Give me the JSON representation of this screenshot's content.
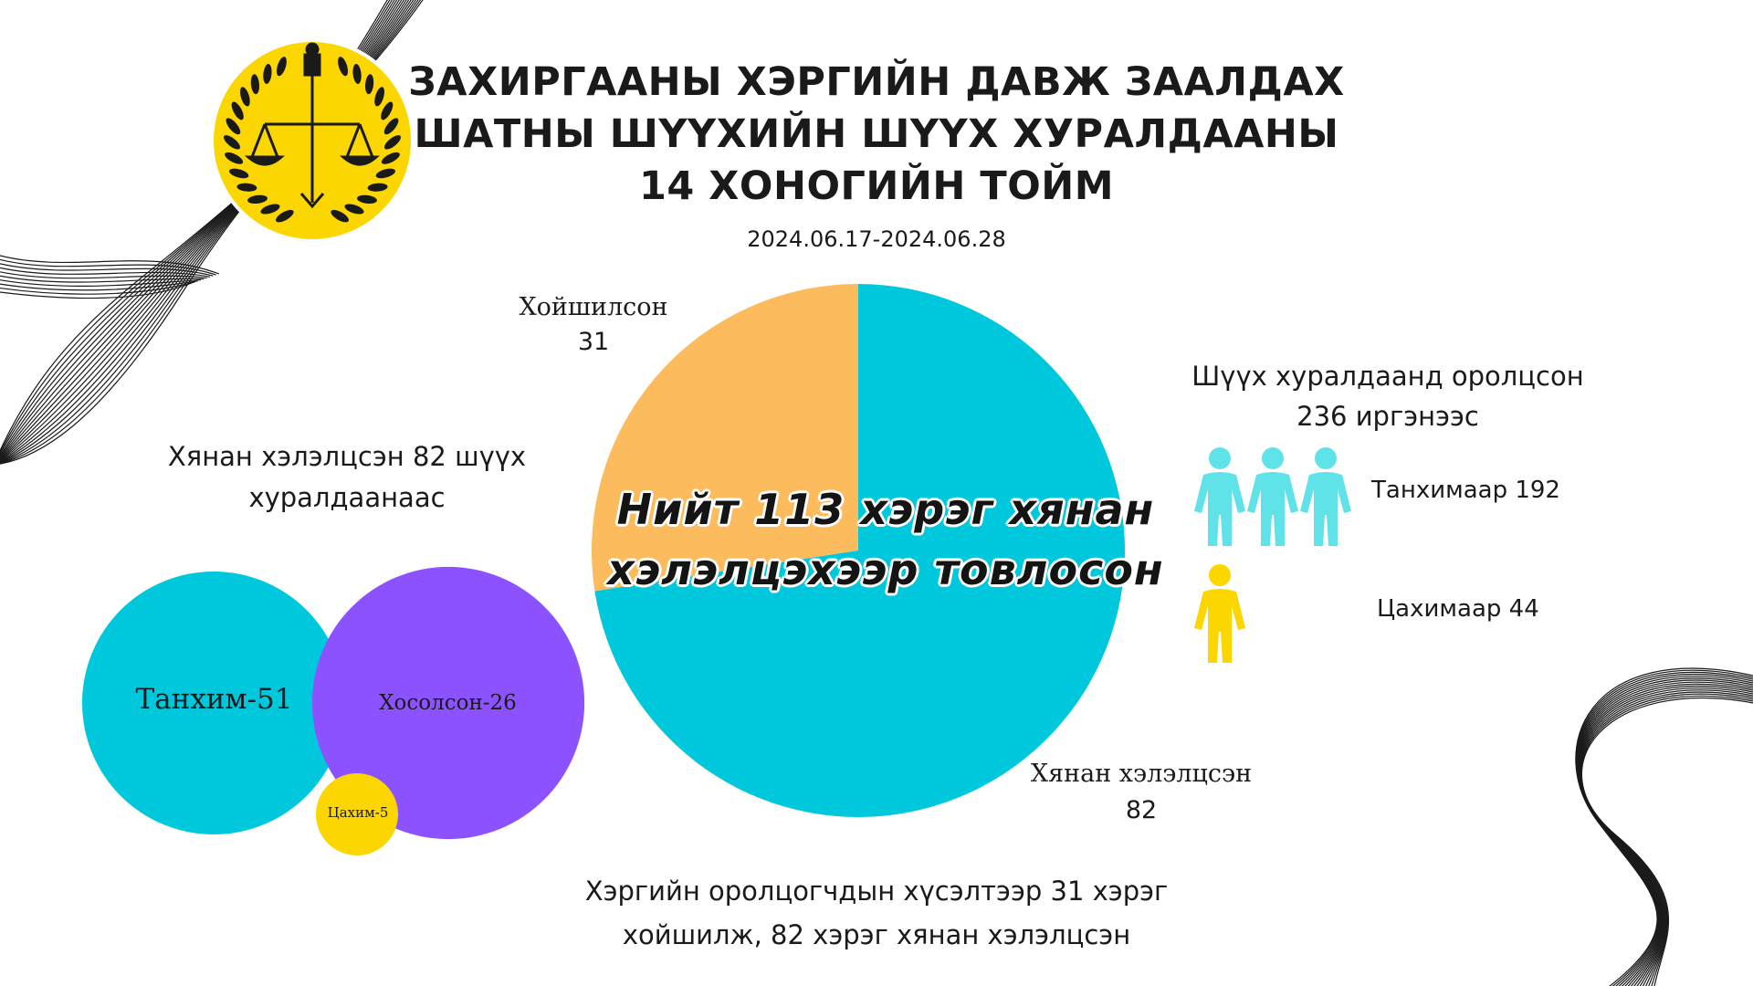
{
  "header": {
    "title_lines": [
      "ЗАХИРГААНЫ ХЭРГИЙН ДАВЖ ЗААЛДАХ",
      "ШАТНЫ ШҮҮХИЙН ШҮҮХ ХУРАЛДААНЫ",
      "14 ХОНОГИЙН ТОЙМ"
    ],
    "date_range": "2024.06.17-2024.06.28"
  },
  "colors": {
    "cyan": "#00c8dc",
    "orange": "#fcbb5c",
    "purple": "#8c52ff",
    "yellow": "#fcd600",
    "people_cyan": "#5fe3e8",
    "emblem_yellow": "#fcd600"
  },
  "chart_data": [
    {
      "type": "pie",
      "title": "",
      "center_label_lines": [
        "Нийт 113 хэрэг хянан",
        "хэлэлцэхээр товлосон"
      ],
      "slices": [
        {
          "name": "Хойшилсон",
          "value": 31,
          "value_label": "31",
          "color": "#fcbb5c"
        },
        {
          "name": "Хянан хэлэлцсэн",
          "value": 82,
          "value_label": "82",
          "color": "#00c8dc"
        }
      ],
      "total": 113
    },
    {
      "type": "bubble",
      "title_lines": [
        "Хянан хэлэлцсэн 82 шүүх",
        "хуралдаанаас"
      ],
      "items": [
        {
          "label": "Танхим-51",
          "value": 51,
          "color": "#00c8dc"
        },
        {
          "label": "Хосолсон-26",
          "value": 26,
          "color": "#8c52ff"
        },
        {
          "label": "Цахим-5",
          "value": 5,
          "color": "#fcd600"
        }
      ]
    },
    {
      "type": "pictograph",
      "title_lines": [
        "Шүүх хуралдаанд оролцсон",
        "236 иргэнээс"
      ],
      "total": 236,
      "rows": [
        {
          "label": "Танхимаар 192",
          "value": 192,
          "icons": 3,
          "icon": "person-icon",
          "color": "#5fe3e8"
        },
        {
          "label": "Цахимаар 44",
          "value": 44,
          "icons": 1,
          "icon": "person-icon",
          "color": "#fcd600"
        }
      ]
    }
  ],
  "footer": {
    "summary_lines": [
      "Хэргийн оролцогчдын хүсэлтээр 31 хэрэг",
      "хойшилж, 82 хэрэг хянан хэлэлцсэн"
    ]
  },
  "icons": {
    "emblem": "court-emblem-icon",
    "scales": "scales-of-justice-icon",
    "person": "person-icon"
  }
}
